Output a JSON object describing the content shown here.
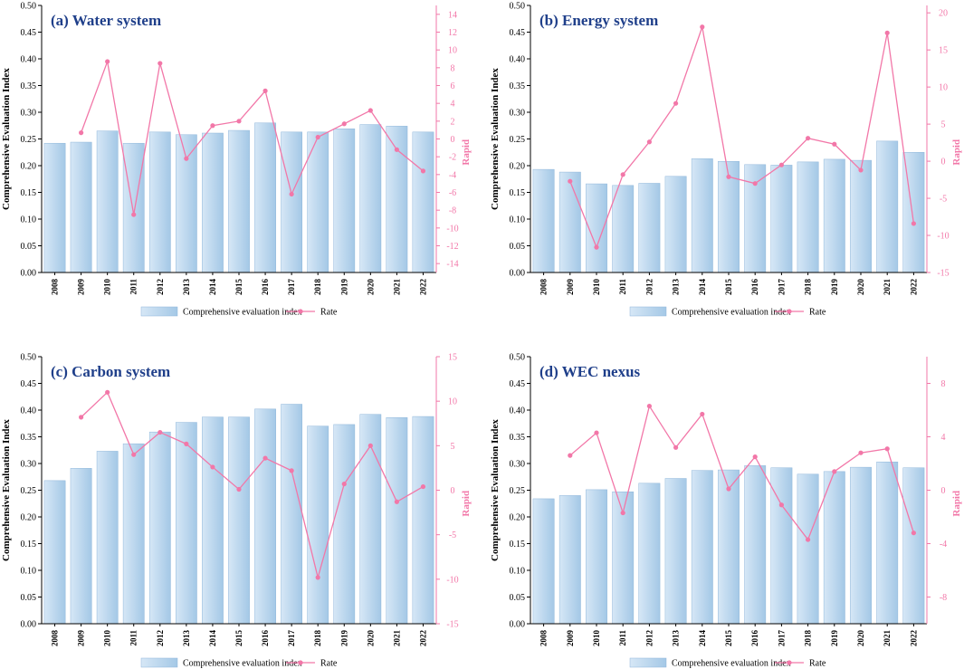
{
  "colors": {
    "bar_light": "#d6e7f6",
    "bar_dark": "#a4c8e6",
    "bar_edge": "#8fb6da",
    "rate": "#f277a8",
    "title": "#1f3f8a",
    "axis": "#000000"
  },
  "chart_data": [
    {
      "type": "bar",
      "title": "(a) Water system",
      "ylabel": "Comprehensive Evaluation Index",
      "y2label": "Rapid",
      "categories": [
        "2008",
        "2009",
        "2010",
        "2011",
        "2012",
        "2013",
        "2014",
        "2015",
        "2016",
        "2017",
        "2018",
        "2019",
        "2020",
        "2021",
        "2022"
      ],
      "ylim": [
        0,
        0.5
      ],
      "yticks": [
        "0.00",
        "0.05",
        "0.10",
        "0.15",
        "0.20",
        "0.25",
        "0.30",
        "0.35",
        "0.40",
        "0.45",
        "0.50"
      ],
      "y2lim": [
        -15,
        15
      ],
      "y2ticks": [
        "-14",
        "-12",
        "-10",
        "-8",
        "-6",
        "-4",
        "-2",
        "0",
        "2",
        "4",
        "6",
        "8",
        "10",
        "12",
        "14"
      ],
      "series": [
        {
          "name": "Comprehensive evaluation index",
          "kind": "bar",
          "values": [
            0.242,
            0.244,
            0.265,
            0.242,
            0.263,
            0.258,
            0.261,
            0.266,
            0.28,
            0.263,
            0.263,
            0.269,
            0.277,
            0.274,
            0.263
          ]
        },
        {
          "name": "Rate",
          "kind": "line",
          "axis": "right",
          "values": [
            null,
            0.7,
            8.7,
            -8.5,
            8.5,
            -2.2,
            1.5,
            2.0,
            5.4,
            -6.2,
            0.2,
            1.7,
            3.2,
            -1.2,
            -3.6
          ]
        }
      ],
      "legend_position": "bottom-center"
    },
    {
      "type": "bar",
      "title": "(b) Energy system",
      "ylabel": "Comprehensive Evaluation Index",
      "y2label": "Rapid",
      "categories": [
        "2008",
        "2009",
        "2010",
        "2011",
        "2012",
        "2013",
        "2014",
        "2015",
        "2016",
        "2017",
        "2018",
        "2019",
        "2020",
        "2021",
        "2022"
      ],
      "ylim": [
        0,
        0.5
      ],
      "yticks": [
        "0.00",
        "0.05",
        "0.10",
        "0.15",
        "0.20",
        "0.25",
        "0.30",
        "0.35",
        "0.40",
        "0.45",
        "0.50"
      ],
      "y2lim": [
        -15,
        21
      ],
      "y2ticks": [
        "-15",
        "-10",
        "-5",
        "0",
        "5",
        "10",
        "15",
        "20"
      ],
      "series": [
        {
          "name": "Comprehensive evaluation index",
          "kind": "bar",
          "values": [
            0.193,
            0.188,
            0.166,
            0.163,
            0.167,
            0.18,
            0.213,
            0.208,
            0.202,
            0.201,
            0.207,
            0.212,
            0.21,
            0.246,
            0.225
          ]
        },
        {
          "name": "Rate",
          "kind": "line",
          "axis": "right",
          "values": [
            null,
            -2.7,
            -11.6,
            -1.8,
            2.6,
            7.8,
            18.1,
            -2.1,
            -3.0,
            -0.5,
            3.1,
            2.3,
            -1.2,
            17.3,
            -8.4
          ]
        }
      ],
      "legend_position": "bottom-center"
    },
    {
      "type": "bar",
      "title": "(c) Carbon system",
      "ylabel": "Comprehensive Evaluation Index",
      "y2label": "Rapid",
      "categories": [
        "2008",
        "2009",
        "2010",
        "2011",
        "2012",
        "2013",
        "2014",
        "2015",
        "2016",
        "2017",
        "2018",
        "2019",
        "2020",
        "2021",
        "2022"
      ],
      "ylim": [
        0,
        0.5
      ],
      "yticks": [
        "0.00",
        "0.05",
        "0.10",
        "0.15",
        "0.20",
        "0.25",
        "0.30",
        "0.35",
        "0.40",
        "0.45",
        "0.50"
      ],
      "y2lim": [
        -15,
        15
      ],
      "y2ticks": [
        "-15",
        "-10",
        "-5",
        "0",
        "5",
        "10",
        "15"
      ],
      "series": [
        {
          "name": "Comprehensive evaluation index",
          "kind": "bar",
          "values": [
            0.268,
            0.291,
            0.323,
            0.337,
            0.359,
            0.377,
            0.387,
            0.387,
            0.402,
            0.411,
            0.37,
            0.373,
            0.392,
            0.386,
            0.388
          ]
        },
        {
          "name": "Rate",
          "kind": "line",
          "axis": "right",
          "values": [
            null,
            8.2,
            11.0,
            4.0,
            6.5,
            5.2,
            2.6,
            0.1,
            3.6,
            2.2,
            -9.8,
            0.7,
            5.0,
            -1.3,
            0.4
          ]
        }
      ],
      "legend_position": "bottom-center"
    },
    {
      "type": "bar",
      "title": "(d) WEC nexus",
      "ylabel": "Comprehensive Evaluation Index",
      "y2label": "Rapid",
      "categories": [
        "2008",
        "2009",
        "2010",
        "2011",
        "2012",
        "2013",
        "2014",
        "2015",
        "2016",
        "2017",
        "2018",
        "2019",
        "2020",
        "2021",
        "2022"
      ],
      "ylim": [
        0,
        0.5
      ],
      "yticks": [
        "0.00",
        "0.05",
        "0.10",
        "0.15",
        "0.20",
        "0.25",
        "0.30",
        "0.35",
        "0.40",
        "0.45",
        "0.50"
      ],
      "y2lim": [
        -10,
        10
      ],
      "y2ticks": [
        "-8",
        "-4",
        "0",
        "4",
        "8"
      ],
      "series": [
        {
          "name": "Comprehensive evaluation index",
          "kind": "bar",
          "values": [
            0.234,
            0.24,
            0.251,
            0.247,
            0.263,
            0.272,
            0.287,
            0.288,
            0.296,
            0.292,
            0.28,
            0.285,
            0.293,
            0.303,
            0.292
          ]
        },
        {
          "name": "Rate",
          "kind": "line",
          "axis": "right",
          "values": [
            null,
            2.6,
            4.3,
            -1.7,
            6.3,
            3.2,
            5.7,
            0.1,
            2.5,
            -1.1,
            -3.7,
            1.4,
            2.8,
            3.1,
            -3.2
          ]
        }
      ],
      "legend_position": "bottom-center"
    }
  ]
}
